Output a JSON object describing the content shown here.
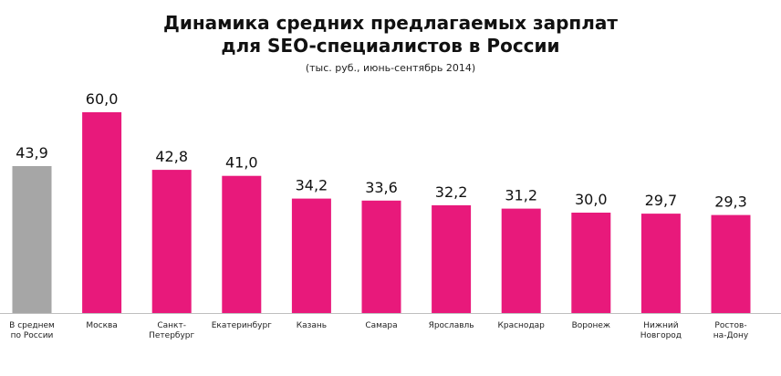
{
  "chart_data": {
    "type": "bar",
    "title": "Динамика средних предлагаемых зарплат",
    "title_line2": "для SEO-специалистов  в России",
    "subtitle": "(тыс. руб., июнь-сентябрь 2014)",
    "categories": [
      "В среднем\nпо России",
      "Москва",
      "Санкт-\nПетербург",
      "Екатеринбург",
      "Казань",
      "Самара",
      "Ярославль",
      "Краснодар",
      "Воронеж",
      "Нижний\nНовгород",
      "Ростов-\nна-Дону"
    ],
    "values": [
      43.9,
      60.0,
      42.8,
      41.0,
      34.2,
      33.6,
      32.2,
      31.2,
      30.0,
      29.7,
      29.3
    ],
    "value_labels": [
      "43,9",
      "60,0",
      "42,8",
      "41,0",
      "34,2",
      "33,6",
      "32,2",
      "31,2",
      "30,0",
      "29,7",
      "29,3"
    ],
    "ylim": [
      0,
      60
    ],
    "xlabel": "",
    "ylabel": "",
    "grid": false,
    "legend": "none",
    "colors": {
      "average": "#a6a6a6",
      "city": "#e8197b",
      "axis": "#bfbfbf"
    }
  }
}
